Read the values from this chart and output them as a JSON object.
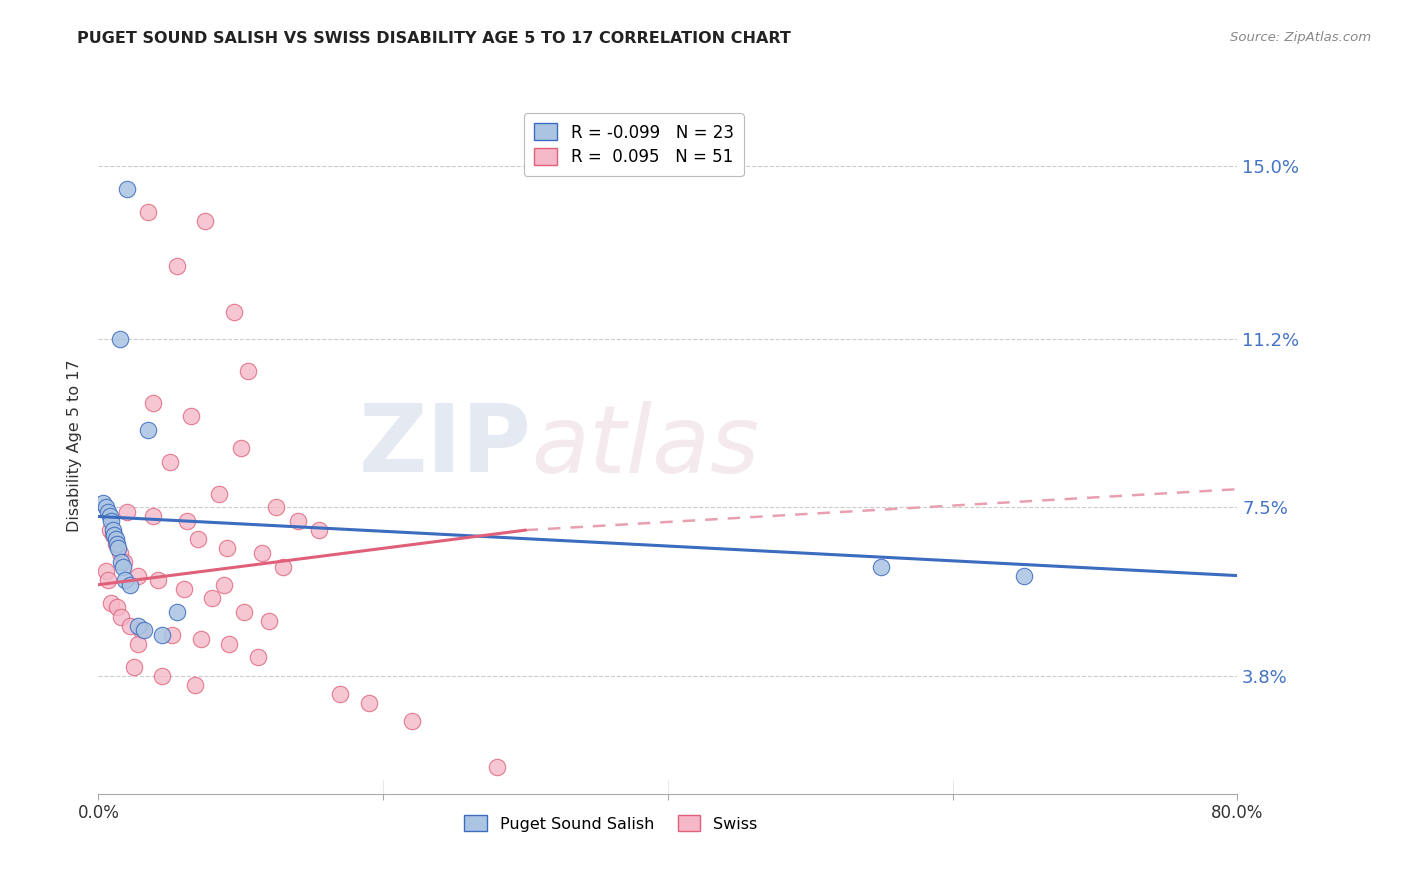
{
  "title": "PUGET SOUND SALISH VS SWISS DISABILITY AGE 5 TO 17 CORRELATION CHART",
  "source": "Source: ZipAtlas.com",
  "ylabel": "Disability Age 5 to 17",
  "ytick_values": [
    3.8,
    7.5,
    11.2,
    15.0
  ],
  "xlim": [
    0.0,
    80.0
  ],
  "ylim": [
    1.2,
    16.5
  ],
  "puget_x": [
    2.0,
    1.5,
    3.5,
    0.3,
    0.5,
    0.7,
    0.8,
    0.9,
    1.0,
    1.1,
    1.2,
    1.3,
    1.4,
    1.6,
    1.7,
    1.9,
    2.2,
    2.8,
    3.2,
    4.5,
    5.5,
    55.0,
    65.0
  ],
  "puget_y": [
    14.5,
    11.2,
    9.2,
    7.6,
    7.5,
    7.4,
    7.3,
    7.2,
    7.0,
    6.9,
    6.8,
    6.7,
    6.6,
    6.3,
    6.2,
    5.9,
    5.8,
    4.9,
    4.8,
    4.7,
    5.2,
    6.2,
    6.0
  ],
  "swiss_x": [
    3.5,
    7.5,
    5.5,
    9.5,
    10.5,
    3.8,
    6.5,
    10.0,
    5.0,
    8.5,
    12.5,
    14.0,
    15.5,
    7.0,
    9.0,
    11.5,
    13.0,
    2.8,
    4.2,
    6.0,
    8.0,
    10.2,
    12.0,
    3.0,
    5.2,
    7.2,
    9.2,
    11.2,
    2.5,
    4.5,
    6.8,
    2.0,
    3.8,
    6.2,
    8.8,
    0.8,
    1.0,
    1.2,
    1.5,
    1.8,
    0.5,
    0.7,
    0.9,
    1.3,
    1.6,
    2.2,
    2.8,
    17.0,
    19.0,
    22.0,
    28.0
  ],
  "swiss_y": [
    14.0,
    13.8,
    12.8,
    11.8,
    10.5,
    9.8,
    9.5,
    8.8,
    8.5,
    7.8,
    7.5,
    7.2,
    7.0,
    6.8,
    6.6,
    6.5,
    6.2,
    6.0,
    5.9,
    5.7,
    5.5,
    5.2,
    5.0,
    4.8,
    4.7,
    4.6,
    4.5,
    4.2,
    4.0,
    3.8,
    3.6,
    7.4,
    7.3,
    7.2,
    5.8,
    7.0,
    6.9,
    6.7,
    6.5,
    6.3,
    6.1,
    5.9,
    5.4,
    5.3,
    5.1,
    4.9,
    4.5,
    3.4,
    3.2,
    2.8,
    1.8
  ],
  "puget_color": "#aac4e2",
  "swiss_color": "#f5b8c8",
  "puget_line_color": "#3b6cbf",
  "swiss_line_color": "#e0607a",
  "swiss_dash_color": "#e8a0b0",
  "background_color": "#ffffff",
  "grid_color": "#cccccc",
  "puget_line_start_x": 0.0,
  "puget_line_start_y": 7.3,
  "puget_line_end_x": 80.0,
  "puget_line_end_y": 6.0,
  "swiss_solid_start_x": 0.0,
  "swiss_solid_start_y": 5.8,
  "swiss_solid_end_x": 30.0,
  "swiss_solid_end_y": 7.0,
  "swiss_dash_start_x": 30.0,
  "swiss_dash_start_y": 7.0,
  "swiss_dash_end_x": 80.0,
  "swiss_dash_end_y": 7.9
}
